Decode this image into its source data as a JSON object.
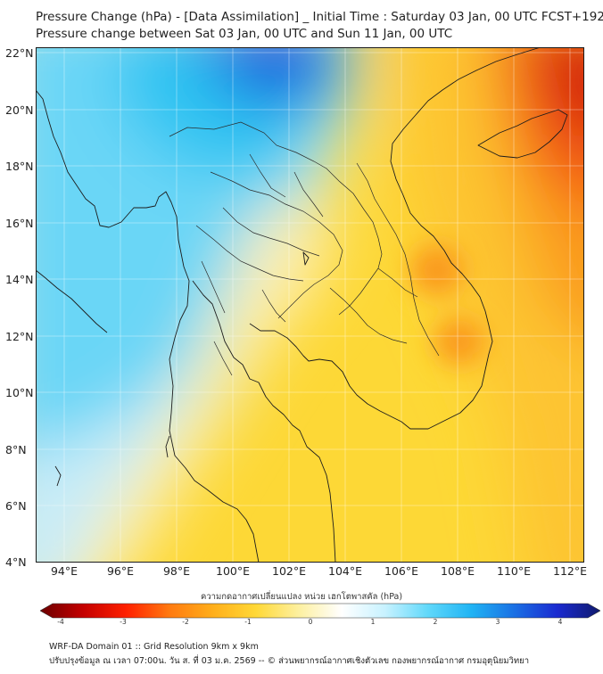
{
  "titles": {
    "line1": "Pressure Change (hPa) - [Data Assimilation] _ Initial Time : Saturday 03 Jan, 00 UTC FCST+192",
    "line2": "Pressure change between Sat 03 Jan, 00 UTC and Sun 11 Jan, 00 UTC"
  },
  "map": {
    "lat_labels": [
      "22°N",
      "20°N",
      "18°N",
      "16°N",
      "14°N",
      "12°N",
      "10°N",
      "8°N",
      "6°N",
      "4°N"
    ],
    "lon_labels": [
      "94°E",
      "96°E",
      "98°E",
      "100°E",
      "102°E",
      "104°E",
      "106°E",
      "108°E",
      "110°E",
      "112°E"
    ],
    "extent": {
      "lon_min": 93,
      "lon_max": 112.5,
      "lat_min": 4,
      "lat_max": 22.2
    },
    "colors": {
      "strong_fall": "#d11a10",
      "moderate_fall": "#fa9a1c",
      "slight_fall": "#fdd836",
      "neutral": "#fcf5c8",
      "slight_rise": "#c8ecf8",
      "moderate_rise": "#33c8f4",
      "strong_rise": "#1a3ad8"
    }
  },
  "colorbar": {
    "caption": "ความกดอากาศเปลี่ยนแปลง หน่วย เฮกโตพาสคัล (hPa)",
    "ticks": [
      "-4",
      "-3",
      "-2",
      "-1",
      "0",
      "1",
      "2",
      "3",
      "4"
    ],
    "range": [
      -4,
      4
    ],
    "stops": [
      "#6b0000",
      "#c40000",
      "#ff2000",
      "#ff7a10",
      "#ffae1a",
      "#ffd836",
      "#fdf0a0",
      "#ffffff",
      "#c8f2ff",
      "#60d8fa",
      "#20b4f4",
      "#1a70e4",
      "#1a2ad0",
      "#101a6c"
    ]
  },
  "footer": {
    "line1": "WRF-DA Domain 01 :: Grid Resolution 9km x 9km",
    "line2": "ปรับปรุงข้อมูล ณ เวลา 07:00น. วัน ส. ที่ 03 ม.ค. 2569 -- © ส่วนพยากรณ์อากาศเชิงตัวเลข กองพยากรณ์อากาศ กรมอุตุนิยมวิทยา"
  }
}
